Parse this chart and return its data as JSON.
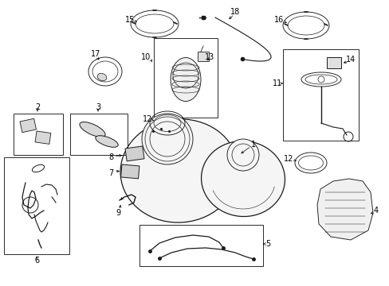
{
  "background_color": "#ffffff",
  "line_color": "#000000",
  "figsize": [
    4.89,
    3.6
  ],
  "dpi": 100,
  "label_fs": 7.0
}
